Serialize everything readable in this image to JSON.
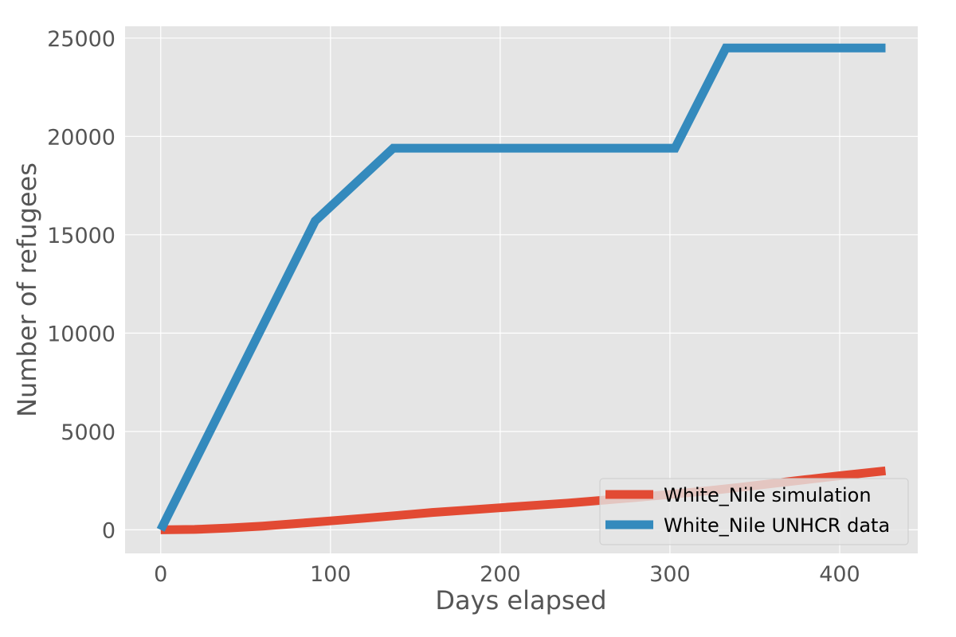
{
  "chart_data": {
    "type": "line",
    "title": "",
    "xlabel": "Days elapsed",
    "ylabel": "Number of refugees",
    "xlim": [
      -21,
      446
    ],
    "ylim": [
      -1200,
      25600
    ],
    "xticks": [
      0,
      100,
      200,
      300,
      400
    ],
    "yticks": [
      0,
      5000,
      10000,
      15000,
      20000,
      25000
    ],
    "grid": true,
    "legend_position": "lower-right",
    "series": [
      {
        "name": "White_Nile simulation",
        "color": "#E24A33",
        "points": [
          [
            0,
            0
          ],
          [
            20,
            20
          ],
          [
            40,
            90
          ],
          [
            60,
            190
          ],
          [
            80,
            320
          ],
          [
            100,
            450
          ],
          [
            120,
            590
          ],
          [
            140,
            730
          ],
          [
            160,
            880
          ],
          [
            180,
            1000
          ],
          [
            200,
            1120
          ],
          [
            220,
            1240
          ],
          [
            240,
            1360
          ],
          [
            260,
            1500
          ],
          [
            280,
            1640
          ],
          [
            300,
            1800
          ],
          [
            320,
            1960
          ],
          [
            340,
            2150
          ],
          [
            360,
            2350
          ],
          [
            380,
            2550
          ],
          [
            400,
            2750
          ],
          [
            427,
            3000
          ]
        ]
      },
      {
        "name": "White_Nile UNHCR data",
        "color": "#348ABD",
        "points": [
          [
            0,
            0
          ],
          [
            91,
            15700
          ],
          [
            137,
            19400
          ],
          [
            303,
            19400
          ],
          [
            333,
            24500
          ],
          [
            427,
            24500
          ]
        ]
      }
    ]
  }
}
